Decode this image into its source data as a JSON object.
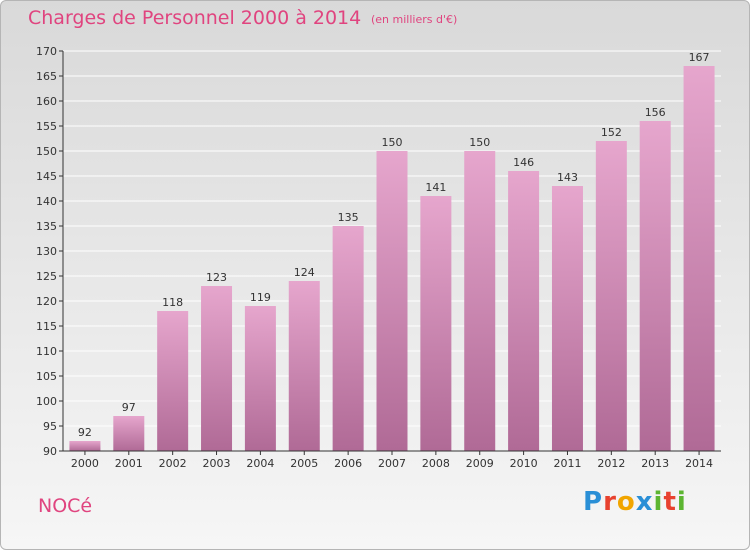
{
  "header": {
    "title": "Charges de Personnel 2000 à 2014",
    "subtitle": "(en milliers d'€)"
  },
  "footer": {
    "commune": "NOCé",
    "logo": "Proxiti",
    "logo_colors": [
      "#2a8fd6",
      "#e8422f",
      "#f1a500",
      "#2a8fd6",
      "#5cb531",
      "#e8422f",
      "#5cb531"
    ]
  },
  "colors": {
    "bar_top": "#e6a6cd",
    "bar_bottom": "#b06a96",
    "accent": "#e0447f",
    "axis": "#333333",
    "grid": "#ffffff"
  },
  "chart_data": {
    "type": "bar",
    "title": "Charges de Personnel 2000 à 2014",
    "subtitle": "(en milliers d'€)",
    "categories": [
      "2000",
      "2001",
      "2002",
      "2003",
      "2004",
      "2005",
      "2006",
      "2007",
      "2008",
      "2009",
      "2010",
      "2011",
      "2012",
      "2013",
      "2014"
    ],
    "values": [
      92,
      97,
      118,
      123,
      119,
      124,
      135,
      150,
      141,
      150,
      146,
      143,
      152,
      156,
      167
    ],
    "ylim": [
      90,
      170
    ],
    "yticks": [
      90,
      95,
      100,
      105,
      110,
      115,
      120,
      125,
      130,
      135,
      140,
      145,
      150,
      155,
      160,
      165,
      170
    ],
    "grid": true,
    "legend": "none",
    "data_labels": true
  }
}
